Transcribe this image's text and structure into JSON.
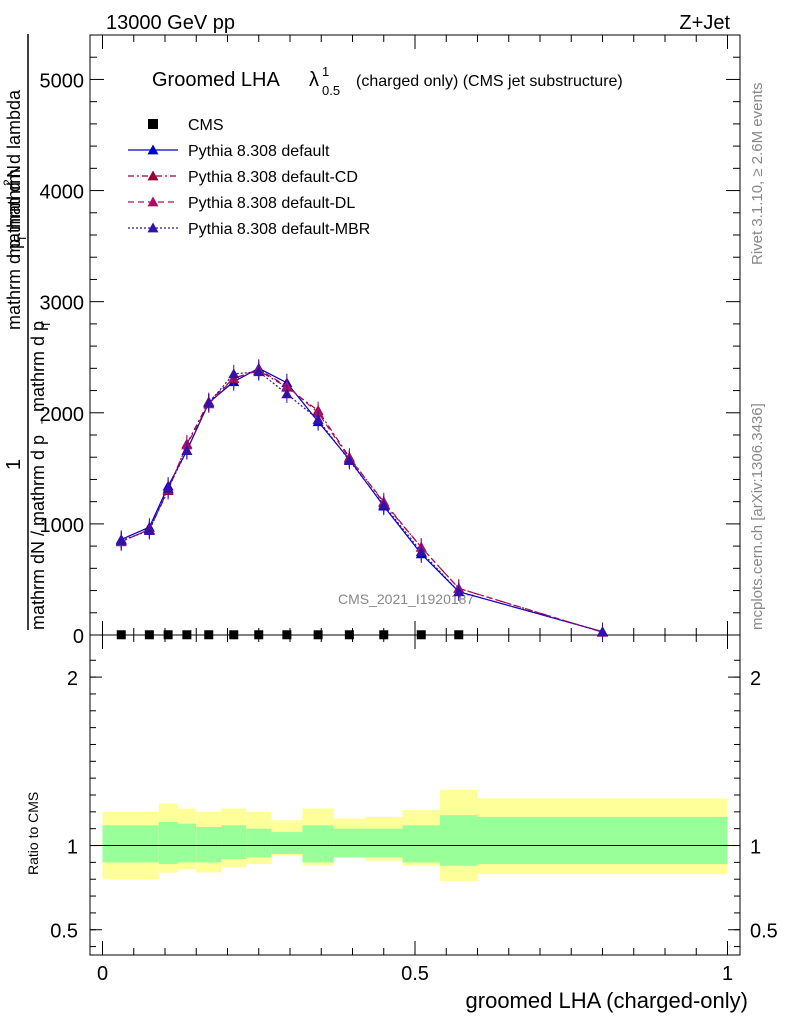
{
  "header": {
    "left": "13000 GeV pp",
    "right": "Z+Jet"
  },
  "side": {
    "rivet": "Rivet 3.1.10, ≥ 2.6M events",
    "mcplots": "mcplots.cern.ch [arXiv:1306.3436]"
  },
  "watermark": "CMS_2021_I1920187",
  "colors": {
    "cms": "#000000",
    "default": "#0000cc",
    "cd": "#990033",
    "dl": "#aa1166",
    "mbr": "#3311aa",
    "band_outer": "#ffff99",
    "band_inner": "#99ff99"
  },
  "chart_data": [
    {
      "type": "line",
      "panel": "main",
      "title_main": "Groomed LHA",
      "title_lambda": "λ",
      "title_sup": "1",
      "title_sub": "0.5",
      "title_rest": "(charged only) (CMS jet substructure)",
      "ylabel": "1 / mathrm dN / mathrm d p_T mathrm d N / mathrm d p_T mathrm d lambda",
      "ylabel_parts": {
        "one": "1",
        "denominator": "mathrm dN / mathrm d p",
        "denominator_sub": "T",
        "num_top": "mathrm d",
        "num_top_sup": "2",
        "num_top_rest": "N",
        "num_mid": "mathrm d p",
        "num_mid_sub": "T",
        "num_mid_rest": "mathrm d lambda",
        "num_lead": "mathrm d p",
        "num_lead_sub": "T",
        "num_lead_rest": "mathrm d p"
      },
      "xlim": [
        -0.02,
        1.02
      ],
      "ylim": [
        0,
        5400
      ],
      "yticks": [
        0,
        1000,
        2000,
        3000,
        4000,
        5000
      ],
      "ytick_labels": [
        "0",
        "1000",
        "2000",
        "3000",
        "4000",
        "5000"
      ],
      "x": [
        0.03,
        0.075,
        0.105,
        0.135,
        0.17,
        0.21,
        0.25,
        0.295,
        0.345,
        0.395,
        0.45,
        0.51,
        0.57,
        0.8
      ],
      "series": [
        {
          "name": "CMS",
          "key": "cms",
          "marker": "square",
          "values": [
            2,
            2,
            2,
            2,
            2,
            2,
            2,
            2,
            2,
            2,
            2,
            2,
            2,
            2
          ]
        },
        {
          "name": "Pythia 8.308 default",
          "key": "default",
          "dash": "",
          "values": [
            860,
            970,
            1340,
            1660,
            2090,
            2280,
            2400,
            2270,
            1920,
            1580,
            1160,
            730,
            390,
            30
          ]
        },
        {
          "name": "Pythia 8.308 default-CD",
          "key": "cd",
          "dash": "6,3,2,3",
          "values": [
            840,
            950,
            1300,
            1720,
            2100,
            2310,
            2380,
            2230,
            2020,
            1600,
            1190,
            790,
            420,
            25
          ]
        },
        {
          "name": "Pythia 8.308 default-DL",
          "key": "dl",
          "dash": "6,4",
          "values": [
            840,
            950,
            1310,
            1710,
            2080,
            2310,
            2390,
            2240,
            2000,
            1590,
            1200,
            790,
            420,
            25
          ]
        },
        {
          "name": "Pythia 8.308 default-MBR",
          "key": "mbr",
          "dash": "2,2",
          "values": [
            850,
            940,
            1320,
            1660,
            2090,
            2350,
            2370,
            2170,
            1940,
            1570,
            1170,
            750,
            390,
            30
          ]
        }
      ]
    },
    {
      "type": "area",
      "panel": "ratio",
      "ylabel": "Ratio to CMS",
      "xlabel": "groomed LHA (charged-only)",
      "xlim": [
        -0.02,
        1.02
      ],
      "ylim": [
        0.35,
        2.25
      ],
      "yticks": [
        0.5,
        1,
        2
      ],
      "ytick_labels": [
        "0.5",
        "1",
        "2"
      ],
      "xticks": [
        0,
        0.5,
        1
      ],
      "xtick_labels": [
        "0",
        "0.5",
        "1"
      ],
      "bins": [
        0,
        0.06,
        0.09,
        0.12,
        0.15,
        0.19,
        0.23,
        0.27,
        0.32,
        0.37,
        0.42,
        0.48,
        0.54,
        0.6,
        1.0
      ],
      "outer_hi": [
        1.2,
        1.2,
        1.25,
        1.22,
        1.2,
        1.22,
        1.2,
        1.15,
        1.22,
        1.16,
        1.17,
        1.21,
        1.33,
        1.28,
        1.3
      ],
      "outer_lo": [
        0.8,
        0.8,
        0.84,
        0.86,
        0.84,
        0.87,
        0.89,
        0.94,
        0.88,
        0.93,
        0.91,
        0.88,
        0.79,
        0.83,
        0.82
      ],
      "inner_hi": [
        1.12,
        1.12,
        1.14,
        1.13,
        1.11,
        1.12,
        1.1,
        1.08,
        1.12,
        1.1,
        1.1,
        1.12,
        1.18,
        1.17,
        1.17
      ],
      "inner_lo": [
        0.9,
        0.9,
        0.89,
        0.9,
        0.9,
        0.92,
        0.93,
        0.95,
        0.9,
        0.93,
        0.93,
        0.9,
        0.88,
        0.89,
        0.91
      ]
    }
  ]
}
